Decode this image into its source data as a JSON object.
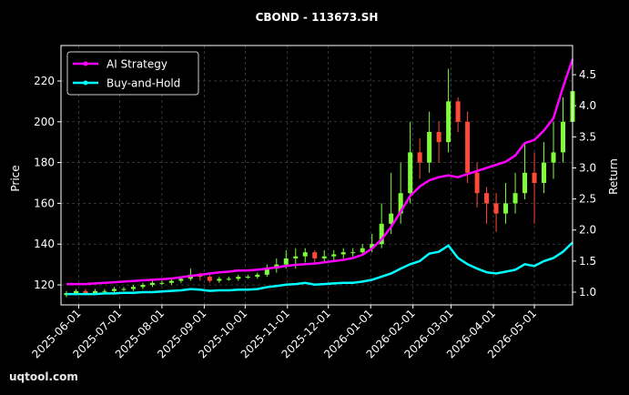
{
  "chart_data": {
    "type": "candlestick",
    "title": "CBOND - 113673.SH",
    "ylabel": "Price",
    "y2label": "Return",
    "watermark": "uqtool.com",
    "grid": true,
    "legend": "upper left",
    "up_color": "#7fff3a",
    "down_color": "#ff4a3a",
    "x": [
      "2025-05-23",
      "2025-05-30",
      "2025-06-06",
      "2025-06-13",
      "2025-06-20",
      "2025-06-27",
      "2025-07-04",
      "2025-07-11",
      "2025-07-18",
      "2025-07-25",
      "2025-08-01",
      "2025-08-08",
      "2025-08-15",
      "2025-08-22",
      "2025-08-29",
      "2025-09-05",
      "2025-09-12",
      "2025-09-19",
      "2025-09-26",
      "2025-10-03",
      "2025-10-10",
      "2025-10-17",
      "2025-10-24",
      "2025-10-31",
      "2025-11-07",
      "2025-11-14",
      "2025-11-21",
      "2025-11-28",
      "2025-12-05",
      "2025-12-12",
      "2025-12-19",
      "2025-12-26",
      "2026-01-02",
      "2026-01-09",
      "2026-01-16",
      "2026-01-23",
      "2026-01-30",
      "2026-02-06",
      "2026-02-13",
      "2026-02-20",
      "2026-02-27",
      "2026-03-06",
      "2026-03-13",
      "2026-03-20",
      "2026-03-27",
      "2026-04-03",
      "2026-04-10",
      "2026-04-17",
      "2026-04-24",
      "2026-05-01",
      "2026-05-08",
      "2026-05-15",
      "2026-05-22",
      "2026-05-29"
    ],
    "open": [
      115,
      116,
      117,
      116,
      117,
      117,
      118,
      118,
      119,
      120,
      121,
      121,
      122,
      123,
      125,
      124,
      122,
      123,
      123,
      124,
      124,
      125,
      128,
      130,
      133,
      134,
      136,
      133,
      134,
      135,
      136,
      136,
      138,
      140,
      150,
      155,
      165,
      185,
      180,
      195,
      190,
      210,
      200,
      175,
      165,
      160,
      155,
      160,
      165,
      175,
      170,
      180,
      185,
      200
    ],
    "high": [
      117,
      118,
      118,
      118,
      118,
      119,
      119,
      120,
      121,
      122,
      122,
      123,
      124,
      128,
      126,
      125,
      124,
      124,
      125,
      125,
      126,
      130,
      133,
      137,
      138,
      138,
      137,
      137,
      137,
      138,
      138,
      140,
      145,
      160,
      175,
      180,
      200,
      192,
      205,
      200,
      226,
      212,
      205,
      180,
      168,
      165,
      170,
      175,
      190,
      185,
      190,
      200,
      212,
      225
    ],
    "low": [
      114,
      115,
      115,
      115,
      116,
      116,
      117,
      117,
      118,
      119,
      120,
      120,
      121,
      122,
      122,
      121,
      121,
      122,
      122,
      123,
      123,
      124,
      126,
      128,
      128,
      131,
      130,
      131,
      132,
      133,
      134,
      135,
      136,
      138,
      145,
      150,
      160,
      172,
      175,
      180,
      185,
      195,
      170,
      158,
      150,
      146,
      150,
      155,
      162,
      150,
      165,
      172,
      180,
      195
    ],
    "close": [
      116,
      117,
      116,
      117,
      117,
      118,
      118,
      119,
      120,
      121,
      121,
      122,
      123,
      125,
      124,
      122,
      123,
      123,
      124,
      124,
      125,
      128,
      130,
      133,
      134,
      136,
      133,
      134,
      135,
      136,
      136,
      138,
      140,
      150,
      155,
      165,
      185,
      180,
      195,
      190,
      210,
      200,
      175,
      165,
      160,
      155,
      160,
      165,
      175,
      170,
      180,
      185,
      200,
      215
    ],
    "series": [
      {
        "name": "AI Strategy",
        "color": "#ff00ff",
        "axis": "y2",
        "values": [
          1.13,
          1.13,
          1.13,
          1.14,
          1.15,
          1.16,
          1.17,
          1.18,
          1.19,
          1.2,
          1.21,
          1.22,
          1.24,
          1.26,
          1.28,
          1.3,
          1.32,
          1.33,
          1.35,
          1.35,
          1.36,
          1.38,
          1.4,
          1.42,
          1.44,
          1.45,
          1.46,
          1.48,
          1.5,
          1.52,
          1.55,
          1.6,
          1.7,
          1.85,
          2.05,
          2.3,
          2.55,
          2.7,
          2.8,
          2.85,
          2.88,
          2.85,
          2.9,
          2.95,
          3.0,
          3.05,
          3.1,
          3.2,
          3.4,
          3.45,
          3.6,
          3.8,
          4.3,
          4.75
        ]
      },
      {
        "name": "Buy-and-Hold",
        "color": "#00ffff",
        "axis": "y2",
        "values": [
          0.97,
          0.97,
          0.97,
          0.97,
          0.98,
          0.98,
          0.99,
          0.99,
          1.0,
          1.0,
          1.01,
          1.02,
          1.03,
          1.05,
          1.04,
          1.02,
          1.03,
          1.03,
          1.04,
          1.04,
          1.05,
          1.08,
          1.1,
          1.12,
          1.13,
          1.15,
          1.12,
          1.13,
          1.14,
          1.15,
          1.15,
          1.17,
          1.2,
          1.25,
          1.3,
          1.38,
          1.45,
          1.5,
          1.62,
          1.65,
          1.75,
          1.55,
          1.45,
          1.38,
          1.32,
          1.3,
          1.33,
          1.36,
          1.45,
          1.42,
          1.5,
          1.55,
          1.65,
          1.8
        ]
      }
    ],
    "xlim": [
      "2025-05-19",
      "2026-05-29"
    ],
    "xticks": [
      "2025-06-01",
      "2025-07-01",
      "2025-08-01",
      "2025-09-01",
      "2025-10-01",
      "2025-11-01",
      "2025-12-01",
      "2026-01-01",
      "2026-02-01",
      "2026-03-01",
      "2026-04-01",
      "2026-05-01"
    ],
    "ylim": [
      110.2,
      237.4
    ],
    "yticks": [
      120,
      140,
      160,
      180,
      200,
      220
    ],
    "y2lim": [
      0.795,
      4.97
    ],
    "y2ticks": [
      {
        "value": 1,
        "label": "1.0"
      },
      1.5,
      {
        "value": 2,
        "label": "2.0"
      },
      2.5,
      {
        "value": 3,
        "label": "3.0"
      },
      3.5,
      {
        "value": 4,
        "label": "4.0"
      },
      4.5
    ]
  }
}
